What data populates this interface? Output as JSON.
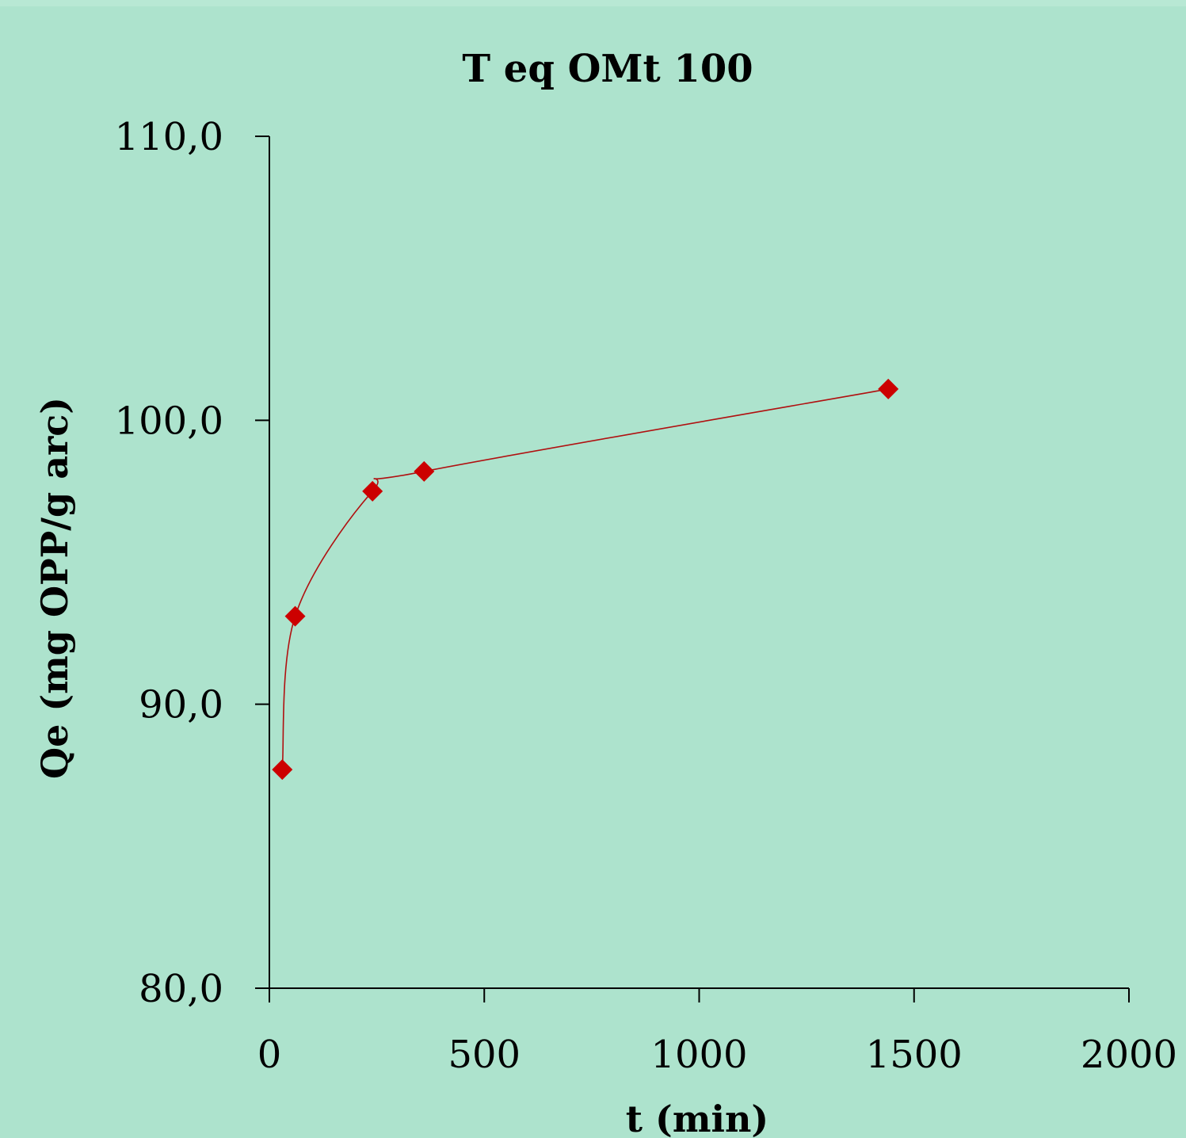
{
  "chart_data": {
    "type": "scatter",
    "title": "T eq OMt 100",
    "xlabel": "t (min)",
    "ylabel": "Qe (mg OPP/g arc)",
    "xlim": [
      0,
      2000
    ],
    "ylim": [
      80,
      110
    ],
    "x_ticks": [
      "0",
      "500",
      "1000",
      "1500",
      "2000"
    ],
    "y_ticks": [
      "80,0",
      "90,0",
      "100,0",
      "110,0"
    ],
    "x_tick_values": [
      0,
      500,
      1000,
      1500,
      2000
    ],
    "y_tick_values": [
      80,
      90,
      100,
      110
    ],
    "grid": false,
    "line": "smooth",
    "series": [
      {
        "x": [
          30,
          60,
          240,
          360,
          1440
        ],
        "y": [
          87.7,
          93.1,
          97.5,
          98.2,
          101.1
        ],
        "color": "#cc0000",
        "line_color": "#b01010",
        "marker": "diamond"
      }
    ]
  }
}
